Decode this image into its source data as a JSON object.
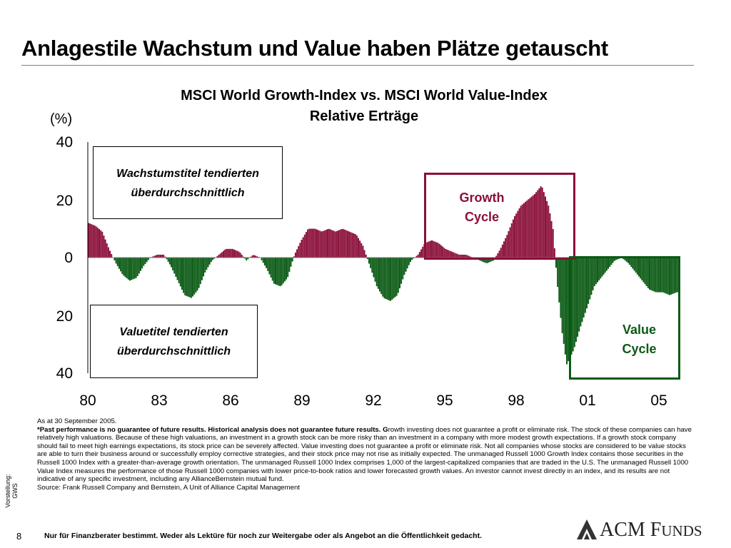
{
  "slide": {
    "title": "Anlagestile Wachstum und Value haben Plätze getauscht",
    "page_number": "8",
    "side_note": "Vorstellung: GWS",
    "disclaimer": "Nur für Finanzberater bestimmt. Weder als Lektüre für noch zur Weitergabe oder als Angebot an die Öffentlichkeit gedacht.",
    "logo_text": "ACM Funds"
  },
  "chart_data": {
    "type": "area",
    "title_line1": "MSCI World Growth-Index vs. MSCI World Value-Index",
    "title_line2": "Relative Erträge",
    "ylabel": "(%)",
    "ylim": [
      -40,
      40
    ],
    "yticks": [
      "40",
      "20",
      "0",
      "20",
      "40"
    ],
    "xlim": [
      1980,
      2005.8
    ],
    "xticks": [
      "80",
      "83",
      "86",
      "89",
      "92",
      "95",
      "98",
      "01",
      "05"
    ],
    "positive_color": "#8b0f3a",
    "negative_color": "#0a5a14",
    "series": [
      {
        "x": [
          1980.0,
          1980.3,
          1980.6,
          1980.9,
          1981.2,
          1981.5,
          1981.8,
          1982.1,
          1982.4,
          1982.7,
          1983.0,
          1983.3,
          1983.6,
          1983.9,
          1984.2,
          1984.5,
          1984.8,
          1985.1,
          1985.4,
          1985.7,
          1986.0,
          1986.3,
          1986.6,
          1986.9,
          1987.2,
          1987.5,
          1987.8,
          1988.1,
          1988.4,
          1988.7,
          1989.0,
          1989.3,
          1989.6,
          1989.9,
          1990.2,
          1990.5,
          1990.8,
          1991.1,
          1991.4,
          1991.7,
          1992.0,
          1992.3,
          1992.6,
          1992.9,
          1993.2,
          1993.5,
          1993.8,
          1994.1,
          1994.4,
          1994.7,
          1995.0,
          1995.3,
          1995.6,
          1995.9,
          1996.2,
          1996.5,
          1996.8,
          1997.1,
          1997.4,
          1997.7,
          1998.0,
          1998.3,
          1998.6,
          1998.9,
          1999.2,
          1999.5,
          1999.8,
          2000.1,
          2000.3,
          2000.5,
          2000.7,
          2000.9,
          2001.2,
          2001.5,
          2001.8,
          2002.1,
          2002.4,
          2002.7,
          2003.0,
          2003.3,
          2003.6,
          2003.9,
          2004.2,
          2004.5,
          2004.8,
          2005.1,
          2005.4,
          2005.7
        ],
        "y": [
          12,
          11,
          9,
          3,
          -2,
          -6,
          -8,
          -7,
          -3,
          0,
          1,
          1,
          -3,
          -8,
          -13,
          -14,
          -11,
          -5,
          -1,
          1,
          3,
          3,
          2,
          -1,
          1,
          0,
          -4,
          -9,
          -10,
          -7,
          1,
          6,
          10,
          10,
          9,
          10,
          9,
          10,
          9,
          8,
          4,
          -3,
          -10,
          -14,
          -15,
          -13,
          -6,
          -1,
          1,
          5,
          6,
          5,
          3,
          2,
          1,
          1,
          0,
          -1,
          -2,
          -1,
          3,
          8,
          14,
          18,
          20,
          22,
          25,
          18,
          10,
          -10,
          -26,
          -37,
          -32,
          -24,
          -17,
          -10,
          -7,
          -4,
          -1,
          0,
          -2,
          -5,
          -8,
          -11,
          -12,
          -12,
          -13,
          -12
        ]
      }
    ],
    "annotations": [
      {
        "line1": "Wachstumstitel tendierten",
        "line2": "überdurchschnittlich"
      },
      {
        "line1": "Valuetitel tendierten",
        "line2": "überdurchschnittlich"
      }
    ],
    "cycles": [
      {
        "line1": "Growth",
        "line2": "Cycle",
        "color": "#8b0f3a"
      },
      {
        "line1": "Value",
        "line2": "Cycle",
        "color": "#0a5a14"
      }
    ]
  },
  "footnote": {
    "line1": "As at 30 September 2005.",
    "bold1": "*Past performance is no guarantee of future results",
    "bold2": ". Historical analysis does not guarantee future results.  G",
    "body": "rowth investing does not guarantee a profit or eliminate risk. The stock of these companies can have relatively high valuations. Because of these high valuations, an investment in a growth stock can be more risky than an investment in a company with more modest growth expectations. If a growth stock company should fail to meet high earnings expectations, its stock price can be severely affected. Value investing does not guarantee a profit or eliminate risk. Not all companies whose stocks are considered to be value stocks are able to turn their business around or successfully employ corrective strategies, and their stock price may not rise as initially expected. The unmanaged Russell 1000 Growth Index contains those securities in the Russell 1000 Index with a greater-than-average growth orientation. The unmanaged Russell 1000 Index comprises 1,000 of the largest-capitalized companies that are traded in the U.S. The unmanaged Russell 1000 Value Index measures the performance of those Russell 1000 companies with lower price-to-book ratios and lower forecasted growth values. An investor cannot invest directly in an index, and its results are not indicative of any specific investment, including any AllianceBernstein mutual fund.",
    "source": "Source: Frank Russell Company and Bernstein, A Unit of Alliance Capital Management"
  }
}
